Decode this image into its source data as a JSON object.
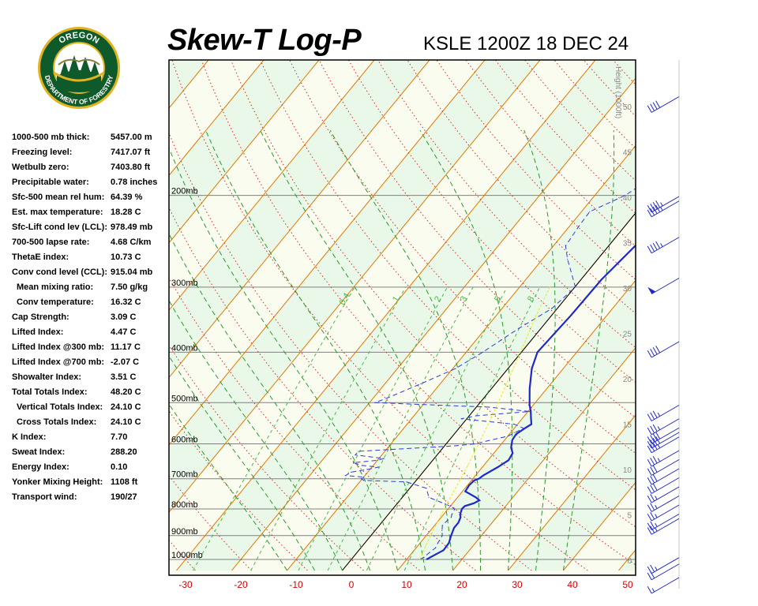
{
  "header": {
    "title": "Skew-T Log-P",
    "station_time": "KSLE 1200Z 18 DEC 24"
  },
  "logo": {
    "text_top": "OREGON",
    "text_bottom": "DEPARTMENT OF FORESTRY",
    "ring_color": "#0e5a2a",
    "gold_color": "#e2b21f"
  },
  "indices": [
    {
      "label": "1000-500 mb thick:",
      "value": "5457.00 m",
      "indent": false
    },
    {
      "label": "Freezing level:",
      "value": "7417.07 ft",
      "indent": false
    },
    {
      "label": "Wetbulb zero:",
      "value": "7403.80 ft",
      "indent": false
    },
    {
      "label": "Precipitable water:",
      "value": "0.78 inches",
      "indent": false
    },
    {
      "label": "Sfc-500 mean rel hum:",
      "value": "64.39 %",
      "indent": false
    },
    {
      "label": "Est. max temperature:",
      "value": "18.28 C",
      "indent": false
    },
    {
      "label": "Sfc-Lift cond lev (LCL):",
      "value": "978.49 mb",
      "indent": false
    },
    {
      "label": "700-500 lapse rate:",
      "value": "4.68 C/km",
      "indent": false
    },
    {
      "label": "ThetaE index:",
      "value": "10.73 C",
      "indent": false
    },
    {
      "label": "Conv cond level (CCL):",
      "value": "915.04 mb",
      "indent": false
    },
    {
      "label": "Mean mixing ratio:",
      "value": "7.50 g/kg",
      "indent": true
    },
    {
      "label": "Conv temperature:",
      "value": "16.32 C",
      "indent": true
    },
    {
      "label": "Cap Strength:",
      "value": "3.09 C",
      "indent": false
    },
    {
      "label": "Lifted Index:",
      "value": "4.47 C",
      "indent": false
    },
    {
      "label": "Lifted Index @300 mb:",
      "value": "11.17 C",
      "indent": false
    },
    {
      "label": "Lifted Index @700 mb:",
      "value": "-2.07 C",
      "indent": false
    },
    {
      "label": "Showalter Index:",
      "value": "3.51 C",
      "indent": false
    },
    {
      "label": "Total Totals Index:",
      "value": "48.20 C",
      "indent": false
    },
    {
      "label": "Vertical Totals Index:",
      "value": "24.10 C",
      "indent": true
    },
    {
      "label": "Cross Totals Index:",
      "value": "24.10 C",
      "indent": true
    },
    {
      "label": "K Index:",
      "value": "7.70",
      "indent": false
    },
    {
      "label": "Sweat Index:",
      "value": "288.20",
      "indent": false
    },
    {
      "label": "Energy Index:",
      "value": "0.10",
      "indent": false
    },
    {
      "label": "Yonker Mixing Height:",
      "value": "1108 ft",
      "indent": false
    },
    {
      "label": "Transport wind:",
      "value": "190/27",
      "indent": false
    }
  ],
  "chart_data": {
    "type": "line",
    "chart_kind": "skew-t log-p diagram",
    "x_axis": {
      "label": "",
      "ticks": [
        "-30",
        "-20",
        "-10",
        "0",
        "10",
        "20",
        "30",
        "40",
        "50"
      ],
      "range": [
        -30,
        50
      ],
      "tick_color": "#d40000"
    },
    "pressure_axis": {
      "scale": "log",
      "range_mb": [
        1000,
        100
      ],
      "labels": [
        {
          "mb": 1000,
          "text": "1000mb"
        },
        {
          "mb": 900,
          "text": "900mb"
        },
        {
          "mb": 800,
          "text": "800mb"
        },
        {
          "mb": 700,
          "text": "700mb"
        },
        {
          "mb": 600,
          "text": "600mb"
        },
        {
          "mb": 500,
          "text": "500mb"
        },
        {
          "mb": 400,
          "text": "400mb"
        },
        {
          "mb": 300,
          "text": "300mb"
        },
        {
          "mb": 200,
          "text": "200mb"
        }
      ]
    },
    "height_axis": {
      "label": "Height (1000ft)",
      "ticks": [
        "0",
        "5",
        "10",
        "15",
        "20",
        "25",
        "30",
        "35",
        "40",
        "45",
        "50"
      ]
    },
    "mixing_ratio_labels": [
      "0.4",
      "1",
      "2",
      "3",
      "5",
      "8"
    ],
    "colors": {
      "temperature": "#1f28c8",
      "dewpoint": "#2b3cd8",
      "parcel": "#e6e62a",
      "isotherm": "#e07800",
      "dry_adiabat": "#d33020",
      "moist_adiabat": "#2b9a2b",
      "mixing_ratio": "#49b849",
      "isobar": "#808080",
      "background_band": "#eaf8ea",
      "wind": "#1f28c8"
    },
    "series": [
      {
        "role": "temperature",
        "style": "solid",
        "points": [
          [
            13.6,
            1000
          ],
          [
            14,
            990
          ],
          [
            15.3,
            960
          ],
          [
            15.2,
            930
          ],
          [
            14.5,
            900
          ],
          [
            13.9,
            870
          ],
          [
            13.9,
            850
          ],
          [
            13.5,
            830
          ],
          [
            13,
            820
          ],
          [
            12.5,
            800
          ],
          [
            12.6,
            790
          ],
          [
            13.8,
            780
          ],
          [
            14.4,
            770
          ],
          [
            13.3,
            760
          ],
          [
            10.5,
            740
          ],
          [
            10.3,
            720
          ],
          [
            10.5,
            705
          ],
          [
            11.1,
            700
          ],
          [
            11.4,
            690
          ],
          [
            12.8,
            665
          ],
          [
            13.7,
            645
          ],
          [
            13.4,
            625
          ],
          [
            12.3,
            610
          ],
          [
            11.4,
            590
          ],
          [
            11.2,
            575
          ],
          [
            11.9,
            560
          ],
          [
            12.5,
            550
          ],
          [
            11.5,
            535
          ],
          [
            10.5,
            520
          ],
          [
            9.3,
            505
          ],
          [
            6.9,
            470
          ],
          [
            4.3,
            430
          ],
          [
            2.9,
            400
          ],
          [
            3.5,
            340
          ],
          [
            3.7,
            290
          ],
          [
            4.8,
            250
          ],
          [
            7.2,
            215
          ],
          [
            16.3,
            200
          ],
          [
            23,
            178
          ],
          [
            30.5,
            150
          ],
          [
            47,
            118
          ],
          [
            55,
            100
          ]
        ]
      },
      {
        "role": "dewpoint",
        "style": "dashed",
        "points": [
          [
            12.4,
            1000
          ],
          [
            12.8,
            990
          ],
          [
            13.1,
            970
          ],
          [
            13.5,
            950
          ],
          [
            13.2,
            930
          ],
          [
            12.9,
            900
          ],
          [
            12.1,
            880
          ],
          [
            11.4,
            860
          ],
          [
            11.6,
            840
          ],
          [
            11.8,
            830
          ],
          [
            11.5,
            820
          ],
          [
            11.2,
            800
          ],
          [
            10,
            790
          ],
          [
            4.8,
            760
          ],
          [
            3,
            730
          ],
          [
            -1.5,
            710
          ],
          [
            -9.5,
            705
          ],
          [
            -10.2,
            700
          ],
          [
            -10,
            695
          ],
          [
            -13.5,
            690
          ],
          [
            -13,
            680
          ],
          [
            -10.5,
            672
          ],
          [
            -8.8,
            665
          ],
          [
            -12,
            660
          ],
          [
            -14,
            652
          ],
          [
            -10,
            645
          ],
          [
            -9.1,
            640
          ],
          [
            -14.8,
            630
          ],
          [
            -14.8,
            620
          ],
          [
            -9.2,
            615
          ],
          [
            -3.5,
            610
          ],
          [
            2.1,
            605
          ],
          [
            5.1,
            600
          ],
          [
            10,
            580
          ],
          [
            11.7,
            560
          ],
          [
            9.4,
            550
          ],
          [
            -1,
            537
          ],
          [
            1.2,
            530
          ],
          [
            10.3,
            520
          ],
          [
            2.3,
            510
          ],
          [
            -19,
            500
          ],
          [
            -17.5,
            490
          ],
          [
            -13.5,
            460
          ],
          [
            -9.5,
            430
          ],
          [
            -7,
            400
          ],
          [
            -4,
            360
          ],
          [
            -1,
            330
          ],
          [
            0.1,
            300
          ],
          [
            -5.5,
            265
          ],
          [
            -7.8,
            250
          ],
          [
            -8.3,
            230
          ],
          [
            -8.5,
            215
          ],
          [
            -4.5,
            200
          ],
          [
            -1.5,
            180
          ],
          [
            3.7,
            155
          ],
          [
            5.6,
            140
          ]
        ]
      },
      {
        "role": "parcel",
        "style": "dashed",
        "points": [
          [
            12.4,
            1000
          ],
          [
            12,
            975
          ],
          [
            11.4,
            940
          ],
          [
            10.8,
            900
          ],
          [
            10.2,
            860
          ],
          [
            9.6,
            820
          ],
          [
            9,
            780
          ],
          [
            8.4,
            740
          ],
          [
            7.8,
            700
          ],
          [
            7.1,
            660
          ],
          [
            6.3,
            620
          ],
          [
            5.4,
            580
          ],
          [
            4.4,
            540
          ],
          [
            3.3,
            500
          ],
          [
            2,
            460
          ],
          [
            0.6,
            420
          ],
          [
            -1,
            380
          ],
          [
            -2.8,
            340
          ],
          [
            -4.5,
            300
          ]
        ]
      }
    ],
    "wind_barbs": [
      {
        "height_kft": 51,
        "speed_kt": 40
      },
      {
        "height_kft": 40,
        "speed_kt": 45
      },
      {
        "height_kft": 39.5,
        "speed_kt": 45
      },
      {
        "height_kft": 35.5,
        "speed_kt": 45
      },
      {
        "height_kft": 31,
        "speed_kt": 50
      },
      {
        "height_kft": 24,
        "speed_kt": 40
      },
      {
        "height_kft": 17,
        "speed_kt": 35
      },
      {
        "height_kft": 15.5,
        "speed_kt": 35
      },
      {
        "height_kft": 14.5,
        "speed_kt": 40
      },
      {
        "height_kft": 14,
        "speed_kt": 40
      },
      {
        "height_kft": 13.5,
        "speed_kt": 35
      },
      {
        "height_kft": 12,
        "speed_kt": 35
      },
      {
        "height_kft": 11,
        "speed_kt": 30
      },
      {
        "height_kft": 10,
        "speed_kt": 30
      },
      {
        "height_kft": 9,
        "speed_kt": 30
      },
      {
        "height_kft": 8,
        "speed_kt": 25
      },
      {
        "height_kft": 7,
        "speed_kt": 25
      },
      {
        "height_kft": 6,
        "speed_kt": 25
      },
      {
        "height_kft": 5,
        "speed_kt": 25
      },
      {
        "height_kft": 4.5,
        "speed_kt": 25
      },
      {
        "height_kft": 0.2,
        "speed_kt": 25
      },
      {
        "height_kft": -0.5,
        "speed_kt": 20
      },
      {
        "height_kft": -2,
        "speed_kt": 15
      }
    ]
  }
}
